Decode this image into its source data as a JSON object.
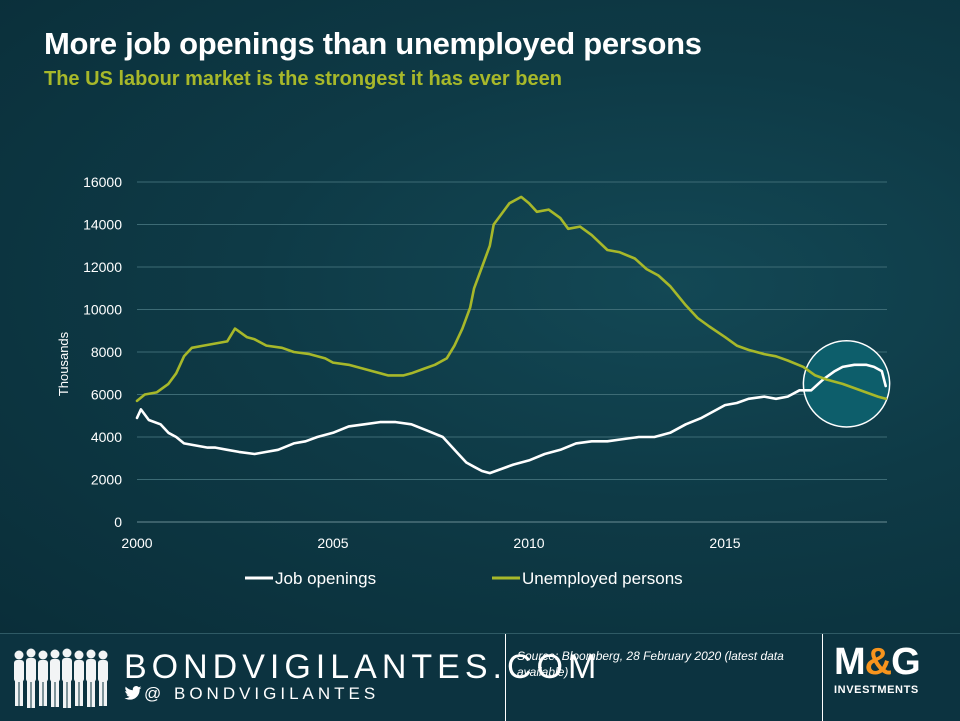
{
  "title": "More job openings than unemployed persons",
  "subtitle": "The US labour market is the strongest it has ever been",
  "footer": {
    "brand": "BONDVIGILANTES.COM",
    "handle": "@ BONDVIGILANTES",
    "source": "Source: Bloomberg, 28 February 2020 (latest data available)",
    "logo_mark_left": "M",
    "logo_mark_amp": "&",
    "logo_mark_right": "G",
    "logo_sub": "INVESTMENTS"
  },
  "colors": {
    "background": "#0c3340",
    "job_openings": "#ffffff",
    "unemployed": "#a7b82a",
    "highlight_fill": "#0d5e6b"
  },
  "chart_data": {
    "type": "line",
    "ylabel": "Thousands",
    "xlabel": "",
    "ylim": [
      0,
      16000
    ],
    "yticks": [
      0,
      2000,
      4000,
      6000,
      8000,
      10000,
      12000,
      14000,
      16000
    ],
    "xlim": [
      2000,
      2019.1
    ],
    "xticks": [
      2000,
      2005,
      2010,
      2015
    ],
    "grid": "horizontal",
    "legend_position": "bottom",
    "highlight": {
      "shape": "circle",
      "x_range": [
        2017.0,
        2019.2
      ],
      "label": ""
    },
    "series": [
      {
        "name": "Job openings",
        "color": "#ffffff",
        "points": [
          [
            2000.0,
            4900
          ],
          [
            2000.1,
            5300
          ],
          [
            2000.3,
            4800
          ],
          [
            2000.6,
            4600
          ],
          [
            2000.8,
            4200
          ],
          [
            2001.0,
            4000
          ],
          [
            2001.2,
            3700
          ],
          [
            2001.5,
            3600
          ],
          [
            2001.8,
            3500
          ],
          [
            2002.0,
            3500
          ],
          [
            2002.3,
            3400
          ],
          [
            2002.6,
            3300
          ],
          [
            2003.0,
            3200
          ],
          [
            2003.3,
            3300
          ],
          [
            2003.6,
            3400
          ],
          [
            2004.0,
            3700
          ],
          [
            2004.3,
            3800
          ],
          [
            2004.6,
            4000
          ],
          [
            2005.0,
            4200
          ],
          [
            2005.4,
            4500
          ],
          [
            2005.8,
            4600
          ],
          [
            2006.2,
            4700
          ],
          [
            2006.6,
            4700
          ],
          [
            2007.0,
            4600
          ],
          [
            2007.4,
            4300
          ],
          [
            2007.8,
            4000
          ],
          [
            2008.0,
            3600
          ],
          [
            2008.2,
            3200
          ],
          [
            2008.4,
            2800
          ],
          [
            2008.6,
            2600
          ],
          [
            2008.8,
            2400
          ],
          [
            2009.0,
            2300
          ],
          [
            2009.3,
            2500
          ],
          [
            2009.6,
            2700
          ],
          [
            2010.0,
            2900
          ],
          [
            2010.4,
            3200
          ],
          [
            2010.8,
            3400
          ],
          [
            2011.2,
            3700
          ],
          [
            2011.6,
            3800
          ],
          [
            2012.0,
            3800
          ],
          [
            2012.4,
            3900
          ],
          [
            2012.8,
            4000
          ],
          [
            2013.2,
            4000
          ],
          [
            2013.6,
            4200
          ],
          [
            2014.0,
            4600
          ],
          [
            2014.4,
            4900
          ],
          [
            2014.8,
            5300
          ],
          [
            2015.0,
            5500
          ],
          [
            2015.3,
            5600
          ],
          [
            2015.6,
            5800
          ],
          [
            2016.0,
            5900
          ],
          [
            2016.3,
            5800
          ],
          [
            2016.6,
            5900
          ],
          [
            2016.9,
            6200
          ],
          [
            2017.2,
            6200
          ],
          [
            2017.5,
            6700
          ],
          [
            2017.8,
            7100
          ],
          [
            2018.0,
            7300
          ],
          [
            2018.3,
            7400
          ],
          [
            2018.6,
            7400
          ],
          [
            2018.8,
            7300
          ],
          [
            2019.0,
            7100
          ],
          [
            2019.1,
            6400
          ]
        ]
      },
      {
        "name": "Unemployed persons",
        "color": "#a7b82a",
        "points": [
          [
            2000.0,
            5700
          ],
          [
            2000.2,
            6000
          ],
          [
            2000.5,
            6100
          ],
          [
            2000.8,
            6500
          ],
          [
            2001.0,
            7000
          ],
          [
            2001.2,
            7800
          ],
          [
            2001.4,
            8200
          ],
          [
            2001.7,
            8300
          ],
          [
            2002.0,
            8400
          ],
          [
            2002.3,
            8500
          ],
          [
            2002.5,
            9100
          ],
          [
            2002.8,
            8700
          ],
          [
            2003.0,
            8600
          ],
          [
            2003.3,
            8300
          ],
          [
            2003.7,
            8200
          ],
          [
            2004.0,
            8000
          ],
          [
            2004.4,
            7900
          ],
          [
            2004.8,
            7700
          ],
          [
            2005.0,
            7500
          ],
          [
            2005.4,
            7400
          ],
          [
            2005.8,
            7200
          ],
          [
            2006.0,
            7100
          ],
          [
            2006.4,
            6900
          ],
          [
            2006.8,
            6900
          ],
          [
            2007.0,
            7000
          ],
          [
            2007.3,
            7200
          ],
          [
            2007.6,
            7400
          ],
          [
            2007.9,
            7700
          ],
          [
            2008.1,
            8300
          ],
          [
            2008.3,
            9100
          ],
          [
            2008.5,
            10100
          ],
          [
            2008.6,
            11000
          ],
          [
            2008.8,
            12000
          ],
          [
            2009.0,
            13000
          ],
          [
            2009.1,
            14000
          ],
          [
            2009.3,
            14500
          ],
          [
            2009.5,
            15000
          ],
          [
            2009.8,
            15300
          ],
          [
            2010.0,
            15000
          ],
          [
            2010.2,
            14600
          ],
          [
            2010.5,
            14700
          ],
          [
            2010.8,
            14300
          ],
          [
            2011.0,
            13800
          ],
          [
            2011.3,
            13900
          ],
          [
            2011.6,
            13500
          ],
          [
            2012.0,
            12800
          ],
          [
            2012.3,
            12700
          ],
          [
            2012.7,
            12400
          ],
          [
            2013.0,
            11900
          ],
          [
            2013.3,
            11600
          ],
          [
            2013.6,
            11100
          ],
          [
            2014.0,
            10200
          ],
          [
            2014.3,
            9600
          ],
          [
            2014.6,
            9200
          ],
          [
            2015.0,
            8700
          ],
          [
            2015.3,
            8300
          ],
          [
            2015.6,
            8100
          ],
          [
            2016.0,
            7900
          ],
          [
            2016.3,
            7800
          ],
          [
            2016.6,
            7600
          ],
          [
            2017.0,
            7300
          ],
          [
            2017.3,
            6900
          ],
          [
            2017.6,
            6700
          ],
          [
            2018.0,
            6500
          ],
          [
            2018.3,
            6300
          ],
          [
            2018.6,
            6100
          ],
          [
            2018.9,
            5900
          ],
          [
            2019.1,
            5800
          ]
        ]
      }
    ]
  }
}
